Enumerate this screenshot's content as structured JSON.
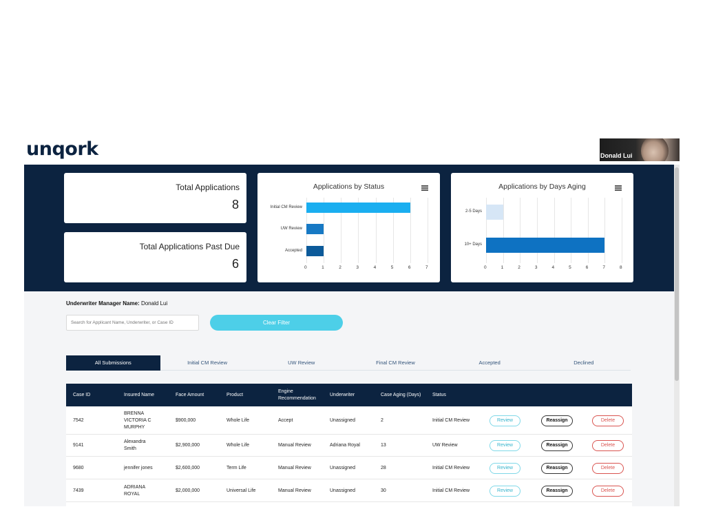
{
  "app": {
    "logo": "unqork"
  },
  "video": {
    "participant_name": "Donald Lui"
  },
  "stats": [
    {
      "title": "Total Applications",
      "value": "8"
    },
    {
      "title": "Total Applications Past Due",
      "value": "6"
    }
  ],
  "chart_data": [
    {
      "type": "bar",
      "orientation": "horizontal",
      "title": "Applications by Status",
      "categories": [
        "Initial CM Review",
        "UW Review",
        "Accepted"
      ],
      "values": [
        6,
        1,
        1
      ],
      "colors": [
        "#1aaef0",
        "#1779c4",
        "#0c5a9a"
      ],
      "xlim": [
        0,
        7
      ],
      "xticks": [
        "0",
        "1",
        "2",
        "3",
        "4",
        "5",
        "6",
        "7"
      ],
      "grid": true,
      "xlabel": "",
      "ylabel": ""
    },
    {
      "type": "bar",
      "orientation": "horizontal",
      "title": "Applications by Days Aging",
      "categories": [
        "2-5 Days",
        "10+ Days"
      ],
      "values": [
        1,
        7
      ],
      "colors": [
        "#d6e6f6",
        "#0e72c2"
      ],
      "xlim": [
        0,
        8
      ],
      "xticks": [
        "0",
        "1",
        "2",
        "3",
        "4",
        "5",
        "6",
        "7",
        "8"
      ],
      "grid": true,
      "xlabel": "",
      "ylabel": ""
    }
  ],
  "manager": {
    "label": "Underwriter Manager Name:",
    "name": "Donald Lui"
  },
  "search": {
    "placeholder": "Search for Applicant Name, Underwriter, or Case ID",
    "value": ""
  },
  "clear_filter_label": "Clear Filter",
  "tabs": [
    "All Submissions",
    "Initial CM Review",
    "UW Review",
    "Final CM Review",
    "Accepted",
    "Declined"
  ],
  "active_tab": 0,
  "table": {
    "headers": [
      "Case ID",
      "Insured Name",
      "Face Amount",
      "Product",
      "Engine Recommendation",
      "Underwriter",
      "Case Aging (Days)",
      "Status"
    ],
    "review_label": "Review",
    "reassign_label": "Reassign",
    "delete_label": "Delete",
    "rows": [
      {
        "case_id": "7542",
        "insured_name": "BRENNA VICTORIA C MURPHY",
        "face_amount": "$900,000",
        "product": "Whole Life",
        "engine": "Accept",
        "underwriter": "Unassigned",
        "aging": "2",
        "status": "Initial CM Review"
      },
      {
        "case_id": "9141",
        "insured_name": "Alexandra Smith",
        "face_amount": "$2,900,000",
        "product": "Whole Life",
        "engine": "Manual Review",
        "underwriter": "Adriana Royal",
        "aging": "13",
        "status": "UW Review"
      },
      {
        "case_id": "9680",
        "insured_name": "jennifer jones",
        "face_amount": "$2,600,000",
        "product": "Term Life",
        "engine": "Manual Review",
        "underwriter": "Unassigned",
        "aging": "28",
        "status": "Initial CM Review"
      },
      {
        "case_id": "7439",
        "insured_name": "ADRIANA ROYAL",
        "face_amount": "$2,000,000",
        "product": "Universal Life",
        "engine": "Manual Review",
        "underwriter": "Unassigned",
        "aging": "30",
        "status": "Initial CM Review"
      }
    ]
  }
}
